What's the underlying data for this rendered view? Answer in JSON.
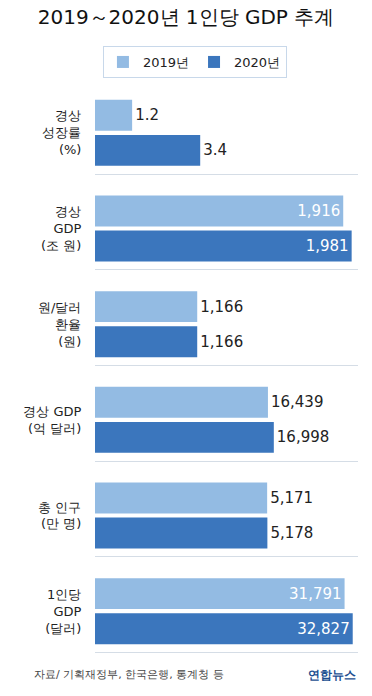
{
  "title": "2019～2020년 1인당 GDP 추계",
  "legend": "top",
  "source": "자료/ 기획재정부, 한국은행, 통계청 등",
  "credit": "연합뉴스",
  "chart_data": [
    {
      "type": "bar",
      "orientation": "horizontal",
      "categories": [
        "경상\n성장률\n(%)"
      ],
      "series": [
        {
          "name": "2019년",
          "color": "#93bbe3",
          "values": [
            1.2
          ]
        },
        {
          "name": "2020년",
          "color": "#3b76bd",
          "values": [
            3.4
          ]
        }
      ],
      "xlim": [
        0,
        8.5
      ],
      "tick_labels": false,
      "grid": false,
      "data_labels": true
    },
    {
      "type": "bar",
      "orientation": "horizontal",
      "categories": [
        "경상\nGDP\n(조 원)"
      ],
      "series": [
        {
          "name": "2019년",
          "color": "#93bbe3",
          "values": [
            1916
          ],
          "value_labels": [
            "1,916"
          ]
        },
        {
          "name": "2020년",
          "color": "#3b76bd",
          "values": [
            1981
          ],
          "value_labels": [
            "1,981"
          ]
        }
      ],
      "xlim": [
        0,
        2030
      ],
      "tick_labels": false,
      "grid": false,
      "data_labels": true
    },
    {
      "type": "bar",
      "orientation": "horizontal",
      "categories": [
        "원/달러\n환율\n(원)"
      ],
      "series": [
        {
          "name": "2019년",
          "color": "#93bbe3",
          "values": [
            1166
          ],
          "value_labels": [
            "1,166"
          ]
        },
        {
          "name": "2020년",
          "color": "#3b76bd",
          "values": [
            1166
          ],
          "value_labels": [
            "1,166"
          ]
        }
      ],
      "xlim": [
        0,
        3000
      ],
      "tick_labels": false,
      "grid": false,
      "data_labels": true
    },
    {
      "type": "bar",
      "orientation": "horizontal",
      "categories": [
        "경상 GDP\n(억 달러)"
      ],
      "series": [
        {
          "name": "2019년",
          "color": "#93bbe3",
          "values": [
            16439
          ],
          "value_labels": [
            "16,439"
          ]
        },
        {
          "name": "2020년",
          "color": "#3b76bd",
          "values": [
            16998
          ],
          "value_labels": [
            "16,998"
          ]
        }
      ],
      "xlim": [
        0,
        25000
      ],
      "tick_labels": false,
      "grid": false,
      "data_labels": true
    },
    {
      "type": "bar",
      "orientation": "horizontal",
      "categories": [
        "총 인구\n(만 명)"
      ],
      "series": [
        {
          "name": "2019년",
          "color": "#93bbe3",
          "values": [
            5171
          ],
          "value_labels": [
            "5,171"
          ]
        },
        {
          "name": "2020년",
          "color": "#3b76bd",
          "values": [
            5178
          ],
          "value_labels": [
            "5,178"
          ]
        }
      ],
      "xlim": [
        0,
        7900
      ],
      "tick_labels": false,
      "grid": false,
      "data_labels": true
    },
    {
      "type": "bar",
      "orientation": "horizontal",
      "categories": [
        "1인당\nGDP\n(달러)"
      ],
      "series": [
        {
          "name": "2019년",
          "color": "#93bbe3",
          "values": [
            31791
          ],
          "value_labels": [
            "31,791"
          ]
        },
        {
          "name": "2020년",
          "color": "#3b76bd",
          "values": [
            32827
          ],
          "value_labels": [
            "32,827"
          ]
        }
      ],
      "xlim": [
        0,
        33500
      ],
      "tick_labels": false,
      "grid": false,
      "data_labels": true
    }
  ]
}
